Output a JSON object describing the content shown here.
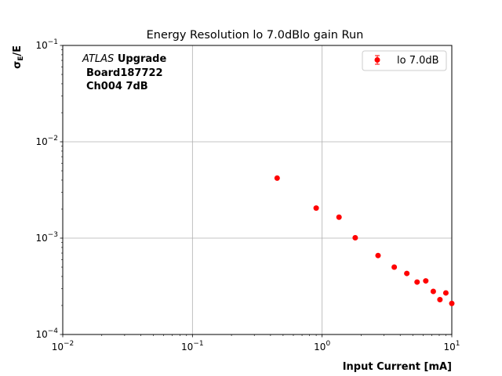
{
  "chart_data": {
    "type": "scatter",
    "title": "Energy Resolution lo 7.0dBlo gain Run",
    "xlabel": "Input Current [mA]",
    "ylabel": "σE/E",
    "ylabel_main": "σ",
    "ylabel_sub": "E",
    "ylabel_tail": "/E",
    "xscale": "log",
    "yscale": "log",
    "xlim": [
      0.01,
      10
    ],
    "ylim": [
      0.0001,
      0.1
    ],
    "grid": true,
    "legend_position": "top-right",
    "x_ticks": [
      {
        "value": 0.01,
        "base": "10",
        "exp": "−2"
      },
      {
        "value": 0.1,
        "base": "10",
        "exp": "−1"
      },
      {
        "value": 1,
        "base": "10",
        "exp": "0"
      },
      {
        "value": 10,
        "base": "10",
        "exp": "1"
      }
    ],
    "y_ticks": [
      {
        "value": 0.0001,
        "base": "10",
        "exp": "−4"
      },
      {
        "value": 0.001,
        "base": "10",
        "exp": "−3"
      },
      {
        "value": 0.01,
        "base": "10",
        "exp": "−2"
      },
      {
        "value": 0.1,
        "base": "10",
        "exp": "−1"
      }
    ],
    "annotation": {
      "atlas": "ATLAS",
      "upgrade": "Upgrade",
      "board": "Board187722",
      "channel": "Ch004 7dB"
    },
    "series": [
      {
        "name": "lo 7.0dB",
        "color": "#ff0000",
        "x": [
          0.45,
          0.9,
          1.35,
          1.8,
          2.7,
          3.6,
          4.5,
          5.4,
          6.3,
          7.2,
          8.1,
          9.0,
          10.0
        ],
        "y": [
          0.0042,
          0.00205,
          0.00165,
          0.00101,
          0.00066,
          0.0005,
          0.00043,
          0.00035,
          0.00036,
          0.00028,
          0.00023,
          0.00027,
          0.00021
        ]
      }
    ]
  }
}
